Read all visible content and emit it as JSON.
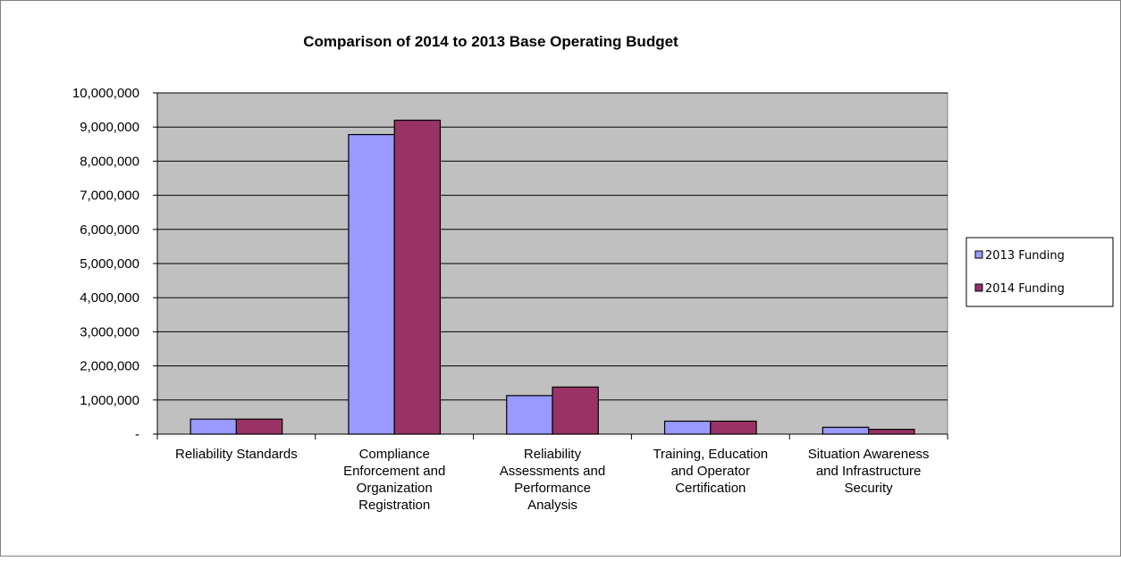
{
  "chart_data": {
    "type": "bar",
    "title": "Comparison of 2014 to 2013 Base Operating Budget",
    "xlabel": "",
    "ylabel": "",
    "categories": [
      [
        "Reliability Standards"
      ],
      [
        "Compliance",
        "Enforcement and",
        "Organization",
        "Registration"
      ],
      [
        "Reliability",
        "Assessments and",
        "Performance",
        "Analysis"
      ],
      [
        "Training, Education",
        "and Operator",
        "Certification"
      ],
      [
        "Situation Awareness",
        "and Infrastructure",
        "Security"
      ]
    ],
    "series": [
      {
        "name": "2013 Funding",
        "color": "#9999ff",
        "values": [
          440000,
          8780000,
          1130000,
          380000,
          200000
        ]
      },
      {
        "name": "2014 Funding",
        "color": "#993366",
        "values": [
          440000,
          9200000,
          1380000,
          380000,
          140000
        ]
      }
    ],
    "ylim": [
      0,
      10000000
    ],
    "yticks": [
      {
        "value": 0,
        "label": "-"
      },
      {
        "value": 1000000,
        "label": "1,000,000"
      },
      {
        "value": 2000000,
        "label": "2,000,000"
      },
      {
        "value": 3000000,
        "label": "3,000,000"
      },
      {
        "value": 4000000,
        "label": "4,000,000"
      },
      {
        "value": 5000000,
        "label": "5,000,000"
      },
      {
        "value": 6000000,
        "label": "6,000,000"
      },
      {
        "value": 7000000,
        "label": "7,000,000"
      },
      {
        "value": 8000000,
        "label": "8,000,000"
      },
      {
        "value": 9000000,
        "label": "9,000,000"
      },
      {
        "value": 10000000,
        "label": "10,000,000"
      }
    ],
    "grid": true,
    "legend_position": "right",
    "plot_background": "#c0c0c0"
  }
}
